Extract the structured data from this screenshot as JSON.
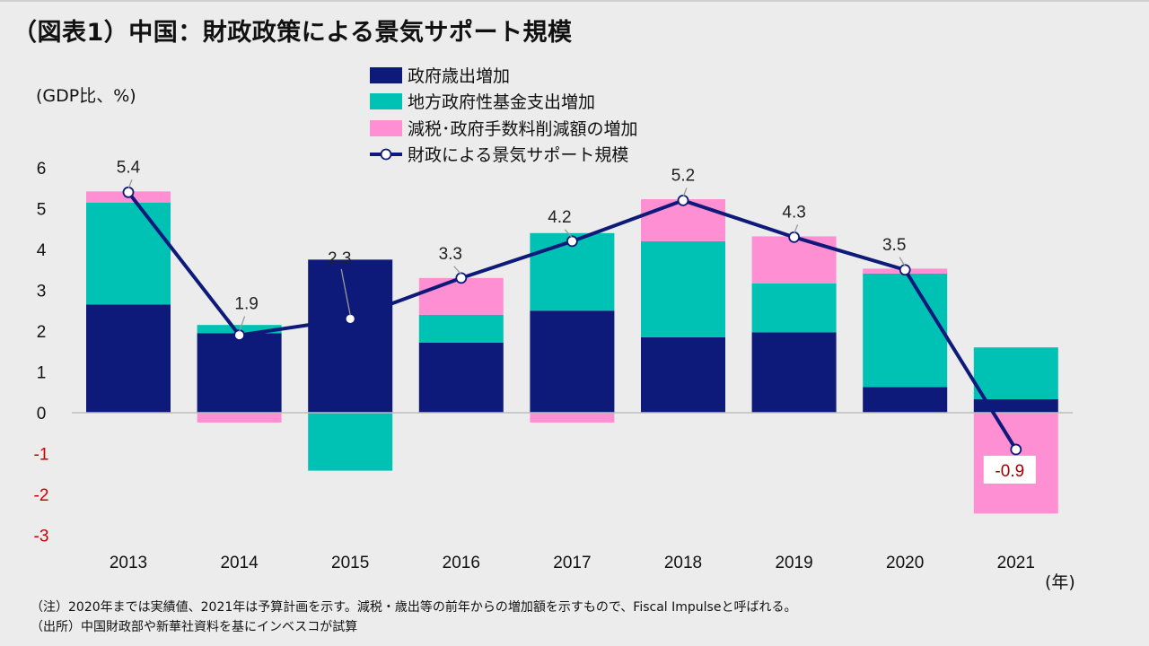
{
  "title": "（図表1）中国：財政政策による景気サポート規模",
  "unit_label": "(GDP比、%)",
  "x_unit": "(年)",
  "notes": {
    "note1": "（注）2020年までは実績値、2021年は予算計画を示す。減税・歳出等の前年からの増加額を示すもので、Fiscal Impulseと呼ばれる。",
    "note2": "（出所）中国財政部や新華社資料を基にインベスコが試算"
  },
  "colors": {
    "navy": "#0d1a7a",
    "teal": "#00c2b4",
    "pink": "#ff8fd3",
    "negative_tick": "#cc0000",
    "negative_label": "#a30000"
  },
  "chart_data": {
    "type": "bar",
    "stacked": true,
    "categories": [
      "2013",
      "2014",
      "2015",
      "2016",
      "2017",
      "2018",
      "2019",
      "2020",
      "2021"
    ],
    "series": [
      {
        "name": "政府歳出増加",
        "color": "#0d1a7a",
        "values": [
          2.65,
          1.95,
          3.75,
          1.72,
          2.5,
          1.85,
          1.97,
          0.63,
          0.33
        ]
      },
      {
        "name": "地方政府性基金支出増加",
        "color": "#00c2b4",
        "values": [
          2.5,
          0.2,
          -1.42,
          0.68,
          1.9,
          2.35,
          1.2,
          2.78,
          1.27
        ]
      },
      {
        "name": "減税･政府手数料削減額の増加",
        "color": "#ff8fd3",
        "values": [
          0.27,
          -0.24,
          0.0,
          0.9,
          -0.24,
          1.03,
          1.15,
          0.12,
          -2.47
        ]
      }
    ],
    "line": {
      "name": "財政による景気サポート規模",
      "color": "#0d1a7a",
      "values": [
        5.4,
        1.9,
        2.3,
        3.3,
        4.2,
        5.2,
        4.3,
        3.5,
        -0.9
      ]
    },
    "ylim": [
      -3,
      6
    ],
    "yticks": [
      6,
      5,
      4,
      3,
      2,
      1,
      0,
      -1,
      -2,
      -3
    ],
    "legend_position": "top-center"
  }
}
